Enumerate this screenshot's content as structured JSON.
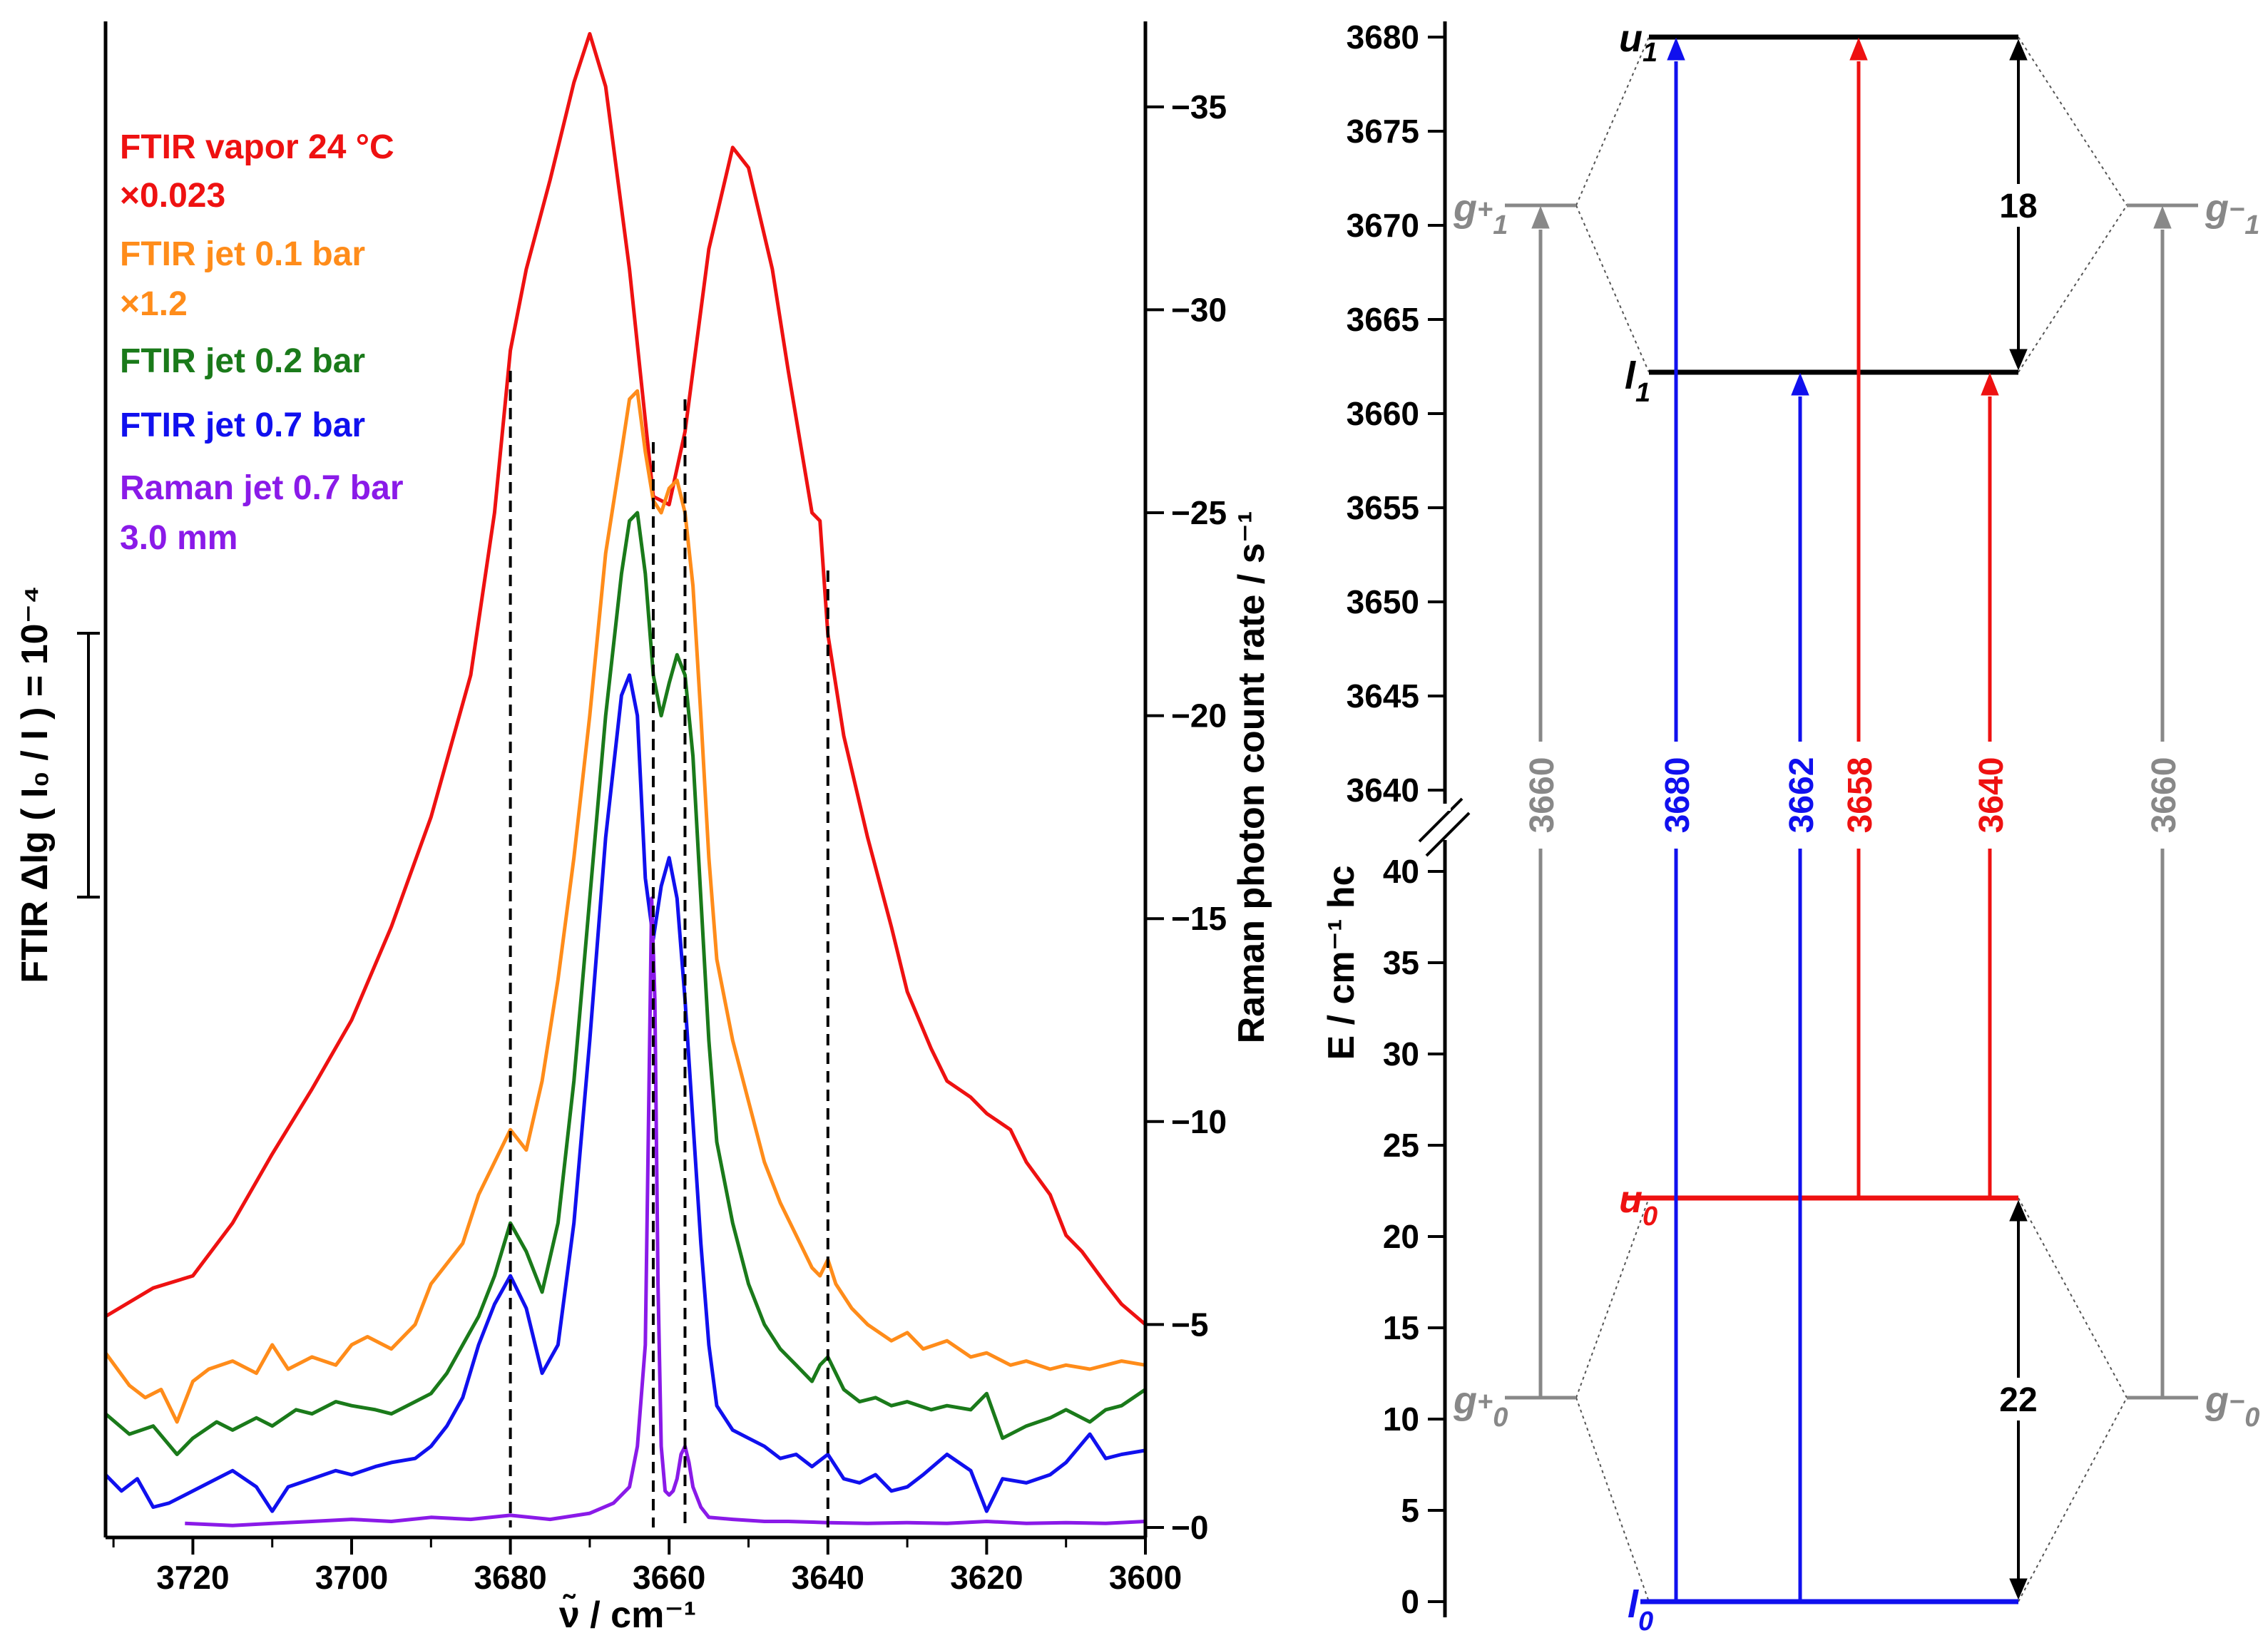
{
  "colors": {
    "red": "#ee1111",
    "orange": "#ff8c1a",
    "green": "#1a7a1a",
    "blue": "#1010ee",
    "purple": "#8a1ae8",
    "gray": "#888888",
    "black": "#000000"
  },
  "left_panel": {
    "x_axis_label": "ν̃ / cm⁻¹",
    "left_axis_label": "FTIR Δlg ( I₀ / I ) = 10⁻⁴",
    "right_axis_label": "Raman photon count rate / s⁻¹",
    "legend": [
      {
        "line1": "FTIR vapor 24 °C",
        "line2": "×0.023",
        "color": "#ee1111"
      },
      {
        "line1": "FTIR jet 0.1 bar",
        "line2": "×1.2",
        "color": "#ff8c1a"
      },
      {
        "line1": "FTIR jet 0.2 bar",
        "line2": "",
        "color": "#1a7a1a"
      },
      {
        "line1": "FTIR jet 0.7 bar",
        "line2": "",
        "color": "#1010ee"
      },
      {
        "line1": "Raman jet 0.7 bar",
        "line2": "3.0 mm",
        "color": "#8a1ae8"
      }
    ]
  },
  "right_panel": {
    "y_axis_label": "E / cm⁻¹ hc",
    "levels": {
      "u1": {
        "letter": "u",
        "sub": "1",
        "energy": 3680
      },
      "l1": {
        "letter": "l",
        "sub": "1",
        "energy": 3662
      },
      "u0": {
        "letter": "u",
        "sub": "0",
        "energy": 22
      },
      "l0": {
        "letter": "l",
        "sub": "0",
        "energy": 0
      },
      "g_plus_1": {
        "letter": "g",
        "sup": "+",
        "sub": "1",
        "energy": 3671
      },
      "g_minus_1": {
        "letter": "g",
        "sup": "−",
        "sub": "1",
        "energy": 3671
      },
      "g_plus_0": {
        "letter": "g",
        "sup": "+",
        "sub": "0",
        "energy": 11
      },
      "g_minus_0": {
        "letter": "g",
        "sup": "−",
        "sub": "0",
        "energy": 11
      }
    },
    "transitions": [
      {
        "label": "3660",
        "color": "#888888"
      },
      {
        "label": "3680",
        "color": "#1010ee"
      },
      {
        "label": "3662",
        "color": "#1010ee"
      },
      {
        "label": "3658",
        "color": "#ee1111"
      },
      {
        "label": "3640",
        "color": "#ee1111"
      },
      {
        "label": "3660",
        "color": "#888888"
      }
    ],
    "splittings": [
      {
        "label": "18",
        "from": "l1",
        "to": "u1"
      },
      {
        "label": "22",
        "from": "l0",
        "to": "u0"
      }
    ]
  },
  "chart_data": [
    {
      "type": "line",
      "title": "",
      "xlabel": "ν̃ / cm⁻¹",
      "ylabel_left": "FTIR Δlg ( I₀ / I ) = 10⁻⁴",
      "ylabel_right": "Raman photon count rate / s⁻¹",
      "xlim": [
        3731,
        3600
      ],
      "ylim_right": [
        0,
        37
      ],
      "x_ticks": [
        3720,
        3700,
        3680,
        3660,
        3640,
        3620,
        3600
      ],
      "y_right_ticks": [
        0,
        5,
        10,
        15,
        20,
        25,
        30,
        35
      ],
      "dashed_markers_x": [
        3680,
        3662,
        3658,
        3640
      ],
      "series": [
        {
          "name": "FTIR vapor 24 °C ×0.023",
          "color": "#ee1111",
          "x": [
            3731,
            3725,
            3720,
            3715,
            3710,
            3705,
            3700,
            3695,
            3690,
            3685,
            3682,
            3680,
            3678,
            3675,
            3672,
            3670,
            3668,
            3665,
            3662,
            3660,
            3658,
            3655,
            3652,
            3650,
            3647,
            3645,
            3642,
            3641,
            3640,
            3638,
            3635,
            3632,
            3630,
            3627,
            3625,
            3622,
            3620,
            3617,
            3615,
            3612,
            3610,
            3608,
            3605,
            3603,
            3600
          ],
          "y": [
            5.2,
            5.9,
            6.2,
            7.5,
            9.2,
            10.8,
            12.5,
            14.8,
            17.5,
            21.0,
            25.0,
            29.0,
            31.0,
            33.2,
            35.6,
            36.8,
            35.5,
            31.0,
            25.4,
            25.2,
            27.0,
            31.5,
            34.0,
            33.5,
            31.0,
            28.5,
            25.0,
            24.8,
            22.0,
            19.5,
            17.0,
            14.8,
            13.2,
            11.8,
            11.0,
            10.6,
            10.2,
            9.8,
            9.0,
            8.2,
            7.2,
            6.8,
            6.0,
            5.5,
            5.0
          ]
        },
        {
          "name": "FTIR jet 0.1 bar ×1.2",
          "color": "#ff8c1a",
          "x": [
            3731,
            3728,
            3726,
            3724,
            3722,
            3720,
            3718,
            3715,
            3712,
            3710,
            3708,
            3705,
            3702,
            3700,
            3698,
            3695,
            3692,
            3690,
            3688,
            3686,
            3684,
            3682,
            3680,
            3678,
            3676,
            3674,
            3672,
            3670,
            3668,
            3666,
            3665,
            3664,
            3663,
            3662,
            3661,
            3660,
            3659,
            3658,
            3657,
            3656,
            3655,
            3654,
            3652,
            3650,
            3648,
            3646,
            3644,
            3642,
            3641,
            3640,
            3639,
            3637,
            3635,
            3632,
            3630,
            3628,
            3625,
            3622,
            3620,
            3617,
            3615,
            3612,
            3610,
            3607,
            3605,
            3603,
            3600
          ],
          "y": [
            4.3,
            3.5,
            3.2,
            3.4,
            2.6,
            3.6,
            3.9,
            4.1,
            3.8,
            4.5,
            3.9,
            4.2,
            4.0,
            4.5,
            4.7,
            4.4,
            5.0,
            6.0,
            6.5,
            7.0,
            8.2,
            9.0,
            9.8,
            9.3,
            11.0,
            13.5,
            16.5,
            20.0,
            24.0,
            26.5,
            27.8,
            28.0,
            26.5,
            25.3,
            25.0,
            25.6,
            25.8,
            25.0,
            23.2,
            20.0,
            16.5,
            14.0,
            12.0,
            10.5,
            9.0,
            8.0,
            7.2,
            6.4,
            6.2,
            6.6,
            6.0,
            5.4,
            5.0,
            4.6,
            4.8,
            4.4,
            4.6,
            4.2,
            4.3,
            4.0,
            4.1,
            3.9,
            4.0,
            3.9,
            4.0,
            4.1,
            4.0
          ]
        },
        {
          "name": "FTIR jet 0.2 bar",
          "color": "#1a7a1a",
          "x": [
            3731,
            3728,
            3725,
            3722,
            3720,
            3717,
            3715,
            3712,
            3710,
            3707,
            3705,
            3702,
            3700,
            3697,
            3695,
            3692,
            3690,
            3688,
            3686,
            3684,
            3682,
            3680,
            3678,
            3676,
            3674,
            3672,
            3670,
            3668,
            3666,
            3665,
            3664,
            3663,
            3662,
            3661,
            3660,
            3659,
            3658,
            3657,
            3656,
            3655,
            3654,
            3652,
            3650,
            3648,
            3646,
            3644,
            3642,
            3641,
            3640,
            3638,
            3636,
            3634,
            3632,
            3630,
            3627,
            3625,
            3622,
            3620,
            3618,
            3615,
            3612,
            3610,
            3607,
            3605,
            3603,
            3600
          ],
          "y": [
            2.8,
            2.3,
            2.5,
            1.8,
            2.2,
            2.6,
            2.4,
            2.7,
            2.5,
            2.9,
            2.8,
            3.1,
            3.0,
            2.9,
            2.8,
            3.1,
            3.3,
            3.8,
            4.5,
            5.2,
            6.2,
            7.5,
            6.8,
            5.8,
            7.5,
            11.0,
            15.5,
            20.0,
            23.5,
            24.8,
            25.0,
            23.5,
            21.0,
            20.0,
            20.8,
            21.5,
            21.0,
            19.0,
            15.5,
            12.0,
            9.5,
            7.5,
            6.0,
            5.0,
            4.4,
            4.0,
            3.6,
            4.0,
            4.2,
            3.4,
            3.1,
            3.2,
            3.0,
            3.1,
            2.9,
            3.0,
            2.9,
            3.3,
            2.2,
            2.5,
            2.7,
            2.9,
            2.6,
            2.9,
            3.0,
            3.4
          ]
        },
        {
          "name": "FTIR jet 0.7 bar",
          "color": "#1010ee",
          "x": [
            3731,
            3729,
            3727,
            3725,
            3723,
            3721,
            3718,
            3715,
            3712,
            3710,
            3708,
            3705,
            3702,
            3700,
            3697,
            3695,
            3692,
            3690,
            3688,
            3686,
            3684,
            3682,
            3680,
            3678,
            3676,
            3674,
            3672,
            3670,
            3668,
            3666,
            3665,
            3664,
            3663,
            3662,
            3661,
            3660,
            3659,
            3658,
            3657,
            3656,
            3655,
            3654,
            3652,
            3650,
            3648,
            3646,
            3644,
            3642,
            3640,
            3638,
            3636,
            3634,
            3632,
            3630,
            3628,
            3625,
            3622,
            3620,
            3618,
            3615,
            3612,
            3610,
            3607,
            3605,
            3603,
            3600
          ],
          "y": [
            1.3,
            0.9,
            1.2,
            0.5,
            0.6,
            0.8,
            1.1,
            1.4,
            1.0,
            0.4,
            1.0,
            1.2,
            1.4,
            1.3,
            1.5,
            1.6,
            1.7,
            2.0,
            2.5,
            3.2,
            4.5,
            5.5,
            6.2,
            5.4,
            3.8,
            4.5,
            7.5,
            12.0,
            17.0,
            20.5,
            21.0,
            20.0,
            16.0,
            14.5,
            15.8,
            16.5,
            15.5,
            13.0,
            10.0,
            7.0,
            4.5,
            3.0,
            2.4,
            2.2,
            2.0,
            1.7,
            1.8,
            1.5,
            1.8,
            1.2,
            1.1,
            1.3,
            0.9,
            1.0,
            1.3,
            1.8,
            1.4,
            0.4,
            1.2,
            1.1,
            1.3,
            1.6,
            2.3,
            1.7,
            1.8,
            1.9
          ]
        },
        {
          "name": "Raman jet 0.7 bar 3.0 mm",
          "color": "#8a1ae8",
          "x": [
            3721,
            3715,
            3710,
            3705,
            3700,
            3695,
            3690,
            3685,
            3680,
            3675,
            3670,
            3667,
            3665,
            3664,
            3663,
            3662.6,
            3662.2,
            3661.8,
            3661.4,
            3661,
            3660.5,
            3660,
            3659.5,
            3659,
            3658.5,
            3658,
            3657.5,
            3657,
            3656,
            3655,
            3652,
            3648,
            3645,
            3640,
            3635,
            3630,
            3625,
            3620,
            3615,
            3610,
            3605,
            3600
          ],
          "y": [
            0.1,
            0.05,
            0.1,
            0.15,
            0.2,
            0.15,
            0.25,
            0.2,
            0.3,
            0.2,
            0.35,
            0.6,
            1.0,
            2.0,
            4.5,
            10.0,
            15.5,
            13.0,
            6.0,
            2.0,
            0.9,
            0.8,
            0.9,
            1.2,
            1.8,
            2.0,
            1.6,
            1.0,
            0.5,
            0.25,
            0.2,
            0.15,
            0.15,
            0.12,
            0.1,
            0.12,
            0.1,
            0.15,
            0.1,
            0.12,
            0.1,
            0.15
          ]
        }
      ]
    },
    {
      "type": "diagram",
      "title": "",
      "ylabel": "E / cm⁻¹ hc",
      "y_ticks_upper": [
        3640,
        3645,
        3650,
        3655,
        3660,
        3665,
        3670,
        3675,
        3680
      ],
      "y_ticks_lower": [
        0,
        5,
        10,
        15,
        20,
        25,
        30,
        35,
        40
      ],
      "axis_break": "between 40 and 3640"
    }
  ]
}
